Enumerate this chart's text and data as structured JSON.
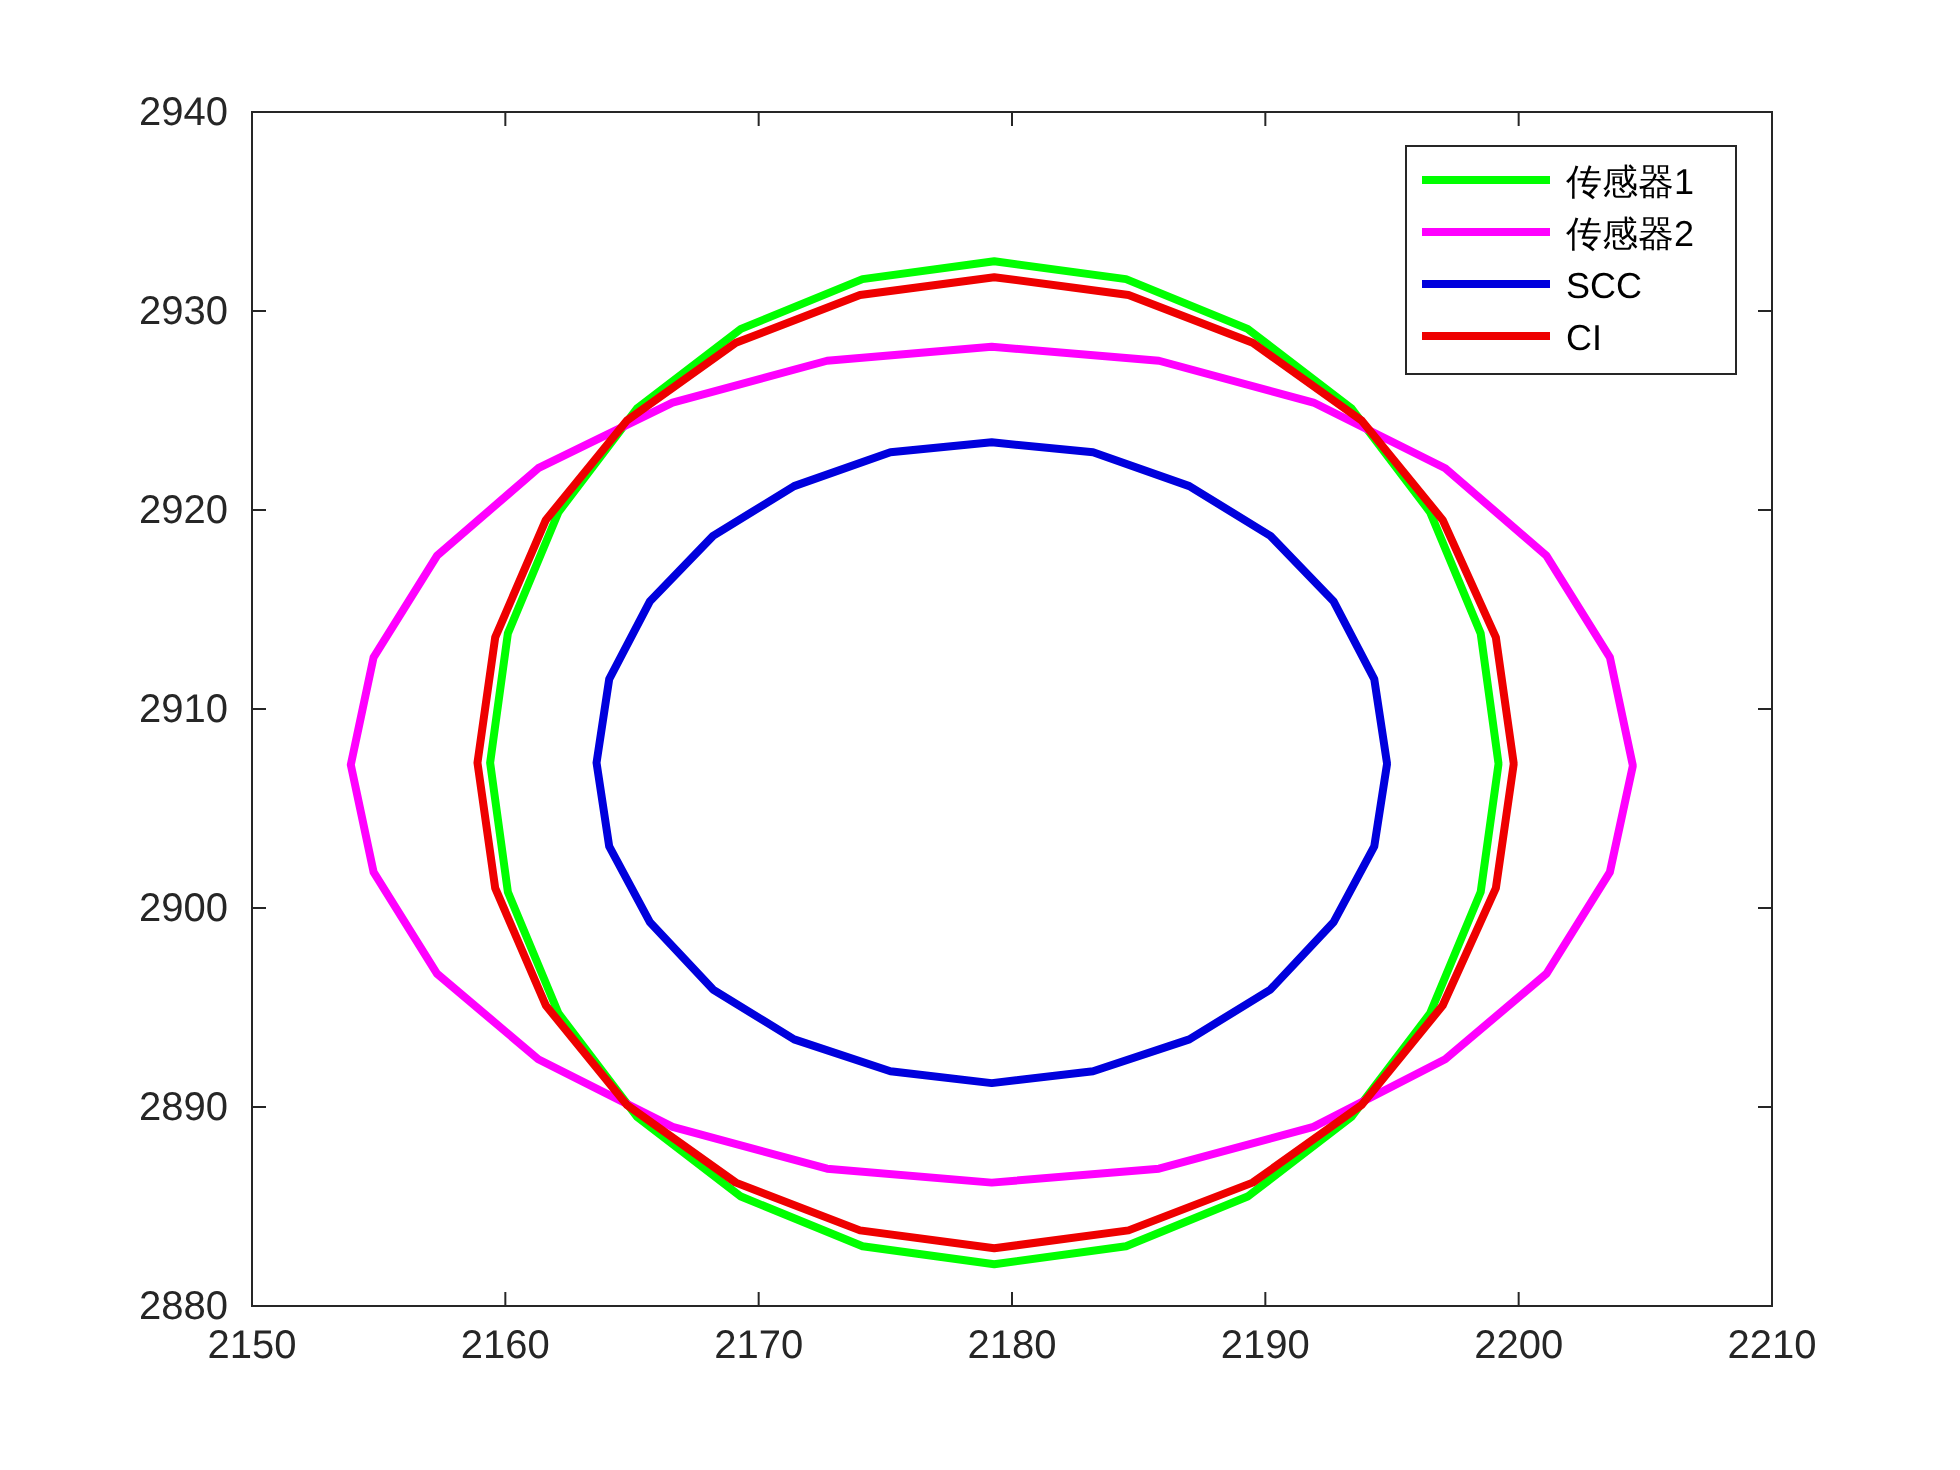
{
  "chart_data": {
    "type": "line",
    "xlim": [
      2150,
      2210
    ],
    "ylim": [
      2880,
      2940
    ],
    "xticks": [
      2150,
      2160,
      2170,
      2180,
      2190,
      2200,
      2210
    ],
    "yticks": [
      2880,
      2890,
      2900,
      2910,
      2920,
      2930,
      2940
    ],
    "grid": false,
    "legend": "top right",
    "marker": "none",
    "line_style": "solid",
    "series": [
      {
        "name": "传感器1",
        "color": "#00ff00",
        "x": [
          2199.2,
          2198.5,
          2196.5,
          2193.4,
          2189.3,
          2184.5,
          2179.3,
          2174.1,
          2169.3,
          2165.2,
          2162.1,
          2160.1,
          2159.4,
          2160.1,
          2162.1,
          2165.2,
          2169.3,
          2174.1,
          2179.3,
          2184.5,
          2189.3,
          2193.4,
          2196.5,
          2198.5,
          2199.2
        ],
        "values": [
          2907.3,
          2913.8,
          2919.9,
          2925.1,
          2929.1,
          2931.6,
          2932.5,
          2931.6,
          2929.1,
          2925.1,
          2919.9,
          2913.8,
          2907.3,
          2900.8,
          2894.7,
          2889.5,
          2885.5,
          2883.0,
          2882.1,
          2883.0,
          2885.5,
          2889.5,
          2894.7,
          2900.8,
          2907.2
        ]
      },
      {
        "name": "传感器2",
        "color": "#ff00ff",
        "x": [
          2204.5,
          2203.6,
          2201.1,
          2197.1,
          2191.9,
          2185.8,
          2179.2,
          2172.7,
          2166.6,
          2161.3,
          2157.3,
          2154.8,
          2153.9,
          2154.8,
          2157.3,
          2161.3,
          2166.6,
          2172.7,
          2179.2,
          2185.8,
          2191.9,
          2197.1,
          2201.1,
          2203.6,
          2204.5
        ],
        "values": [
          2907.2,
          2912.6,
          2917.7,
          2922.1,
          2925.4,
          2927.5,
          2928.2,
          2927.5,
          2925.4,
          2922.1,
          2917.7,
          2912.6,
          2907.2,
          2901.8,
          2896.7,
          2892.4,
          2889.0,
          2886.9,
          2886.2,
          2886.9,
          2889.0,
          2892.4,
          2896.7,
          2901.8,
          2907.1
        ]
      },
      {
        "name": "SCC",
        "color": "#0000dd",
        "x": [
          2194.8,
          2194.3,
          2192.7,
          2190.2,
          2187.0,
          2183.2,
          2179.2,
          2175.2,
          2171.4,
          2168.2,
          2165.7,
          2164.1,
          2163.6,
          2164.1,
          2165.7,
          2168.2,
          2171.4,
          2175.2,
          2179.2,
          2183.2,
          2187.0,
          2190.2,
          2192.7,
          2194.3,
          2194.8
        ],
        "values": [
          2907.3,
          2911.5,
          2915.4,
          2918.7,
          2921.2,
          2922.9,
          2923.4,
          2922.9,
          2921.2,
          2918.7,
          2915.4,
          2911.5,
          2907.3,
          2903.1,
          2899.3,
          2895.9,
          2893.4,
          2891.8,
          2891.2,
          2891.8,
          2893.4,
          2895.9,
          2899.3,
          2903.1,
          2907.2
        ]
      },
      {
        "name": "CI",
        "color": "#ee0000",
        "x": [
          2199.8,
          2199.1,
          2197.0,
          2193.8,
          2189.5,
          2184.6,
          2179.3,
          2174.0,
          2169.1,
          2164.8,
          2161.6,
          2159.6,
          2158.9,
          2159.6,
          2161.6,
          2164.8,
          2169.1,
          2174.0,
          2179.3,
          2184.6,
          2189.5,
          2193.8,
          2197.0,
          2199.1,
          2199.8
        ],
        "values": [
          2907.3,
          2913.6,
          2919.5,
          2924.5,
          2928.4,
          2930.8,
          2931.7,
          2930.8,
          2928.4,
          2924.5,
          2919.5,
          2913.6,
          2907.3,
          2901.0,
          2895.1,
          2890.1,
          2886.2,
          2883.8,
          2882.9,
          2883.8,
          2886.2,
          2890.1,
          2895.1,
          2901.0,
          2907.2
        ]
      }
    ]
  }
}
